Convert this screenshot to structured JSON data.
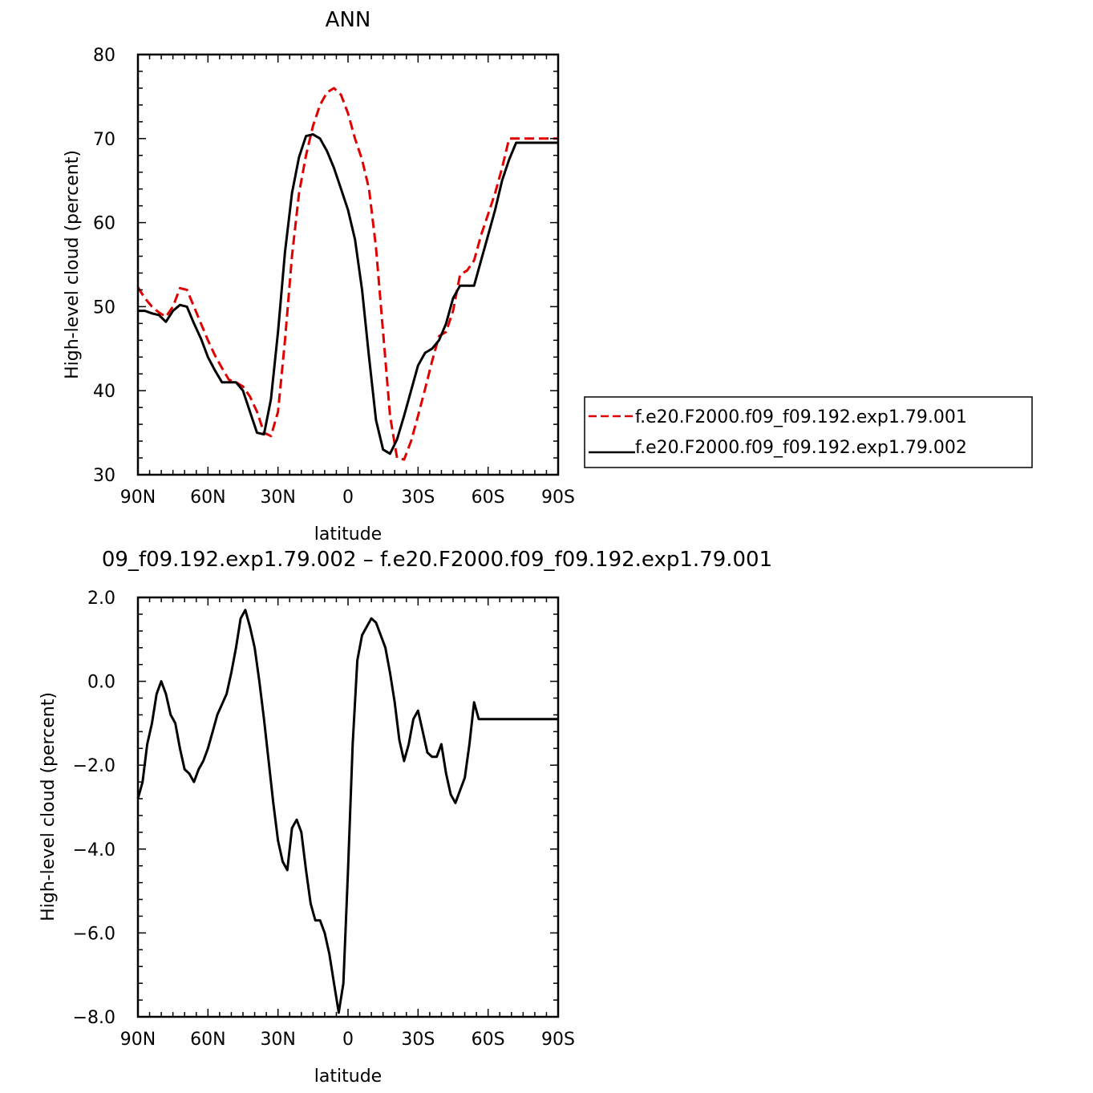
{
  "chart_data": [
    {
      "type": "line",
      "title": "ANN",
      "xlabel": "latitude",
      "ylabel": "High-level cloud (percent)",
      "xlim": [
        -90,
        90
      ],
      "ylim": [
        30,
        80
      ],
      "xticks": [
        -90,
        -60,
        -30,
        0,
        30,
        60,
        90
      ],
      "xtick_labels": [
        "90N",
        "60N",
        "30N",
        "0",
        "30S",
        "60S",
        "90S"
      ],
      "yticks": [
        30,
        40,
        50,
        60,
        70,
        80
      ],
      "ytick_labels": [
        "30",
        "40",
        "50",
        "60",
        "70",
        "80"
      ],
      "legend_placement": "right",
      "series": [
        {
          "name": "f.e20.F2000.f09_f09.192.exp1.79.001",
          "color": "#e00000",
          "dash": "dashed",
          "x": [
            -90,
            -87,
            -84,
            -81,
            -78,
            -75,
            -72,
            -69,
            -66,
            -63,
            -60,
            -57,
            -54,
            -51,
            -48,
            -45,
            -42,
            -39,
            -36,
            -33,
            -30,
            -27,
            -24,
            -21,
            -18,
            -15,
            -12,
            -9,
            -6,
            -3,
            0,
            3,
            6,
            9,
            12,
            15,
            18,
            21,
            24,
            27,
            30,
            33,
            36,
            39,
            42,
            45,
            48,
            51,
            54,
            57,
            60,
            63,
            66,
            69,
            72,
            75,
            78,
            81,
            84,
            87,
            90
          ],
          "y": [
            52.3,
            51.0,
            50.0,
            49.3,
            48.8,
            50.0,
            52.2,
            52.0,
            50.0,
            48.0,
            46.0,
            44.2,
            42.7,
            41.3,
            41.0,
            40.5,
            39.3,
            37.5,
            35.0,
            34.6,
            37.5,
            46.0,
            56.0,
            63.5,
            68.0,
            71.5,
            74.0,
            75.5,
            76.0,
            75.2,
            73.0,
            70.0,
            67.5,
            64.0,
            57.0,
            47.0,
            37.0,
            32.0,
            31.8,
            34.0,
            37.0,
            40.2,
            43.5,
            46.5,
            47.0,
            49.5,
            53.8,
            54.3,
            55.5,
            58.5,
            61.0,
            63.5,
            66.5,
            70.0,
            70.0,
            70.0,
            70.0,
            70.0,
            70.0,
            70.0,
            70.0
          ]
        },
        {
          "name": "f.e20.F2000.f09_f09.192.exp1.79.002",
          "color": "#000000",
          "dash": "solid",
          "x": [
            -90,
            -87,
            -84,
            -81,
            -78,
            -75,
            -72,
            -69,
            -66,
            -63,
            -60,
            -57,
            -54,
            -51,
            -48,
            -45,
            -42,
            -39,
            -36,
            -33,
            -30,
            -27,
            -24,
            -21,
            -18,
            -15,
            -12,
            -9,
            -6,
            -3,
            0,
            3,
            6,
            9,
            12,
            15,
            18,
            21,
            24,
            27,
            30,
            33,
            36,
            39,
            42,
            45,
            48,
            51,
            54,
            57,
            60,
            63,
            66,
            69,
            72,
            75,
            78,
            81,
            84,
            87,
            90
          ],
          "y": [
            49.5,
            49.5,
            49.2,
            49.0,
            48.2,
            49.5,
            50.2,
            50.0,
            48.0,
            46.2,
            44.0,
            42.4,
            41.0,
            41.0,
            41.0,
            40.0,
            37.5,
            35.0,
            34.8,
            39.0,
            47.0,
            56.5,
            63.5,
            67.8,
            70.3,
            70.5,
            70.0,
            68.5,
            66.5,
            64.0,
            61.5,
            58.0,
            52.0,
            44.0,
            36.5,
            33.0,
            32.5,
            34.2,
            37.0,
            40.0,
            43.0,
            44.5,
            45.0,
            46.0,
            48.0,
            51.0,
            52.5,
            52.5,
            52.5,
            55.5,
            58.5,
            61.5,
            65.0,
            67.5,
            69.5,
            69.5,
            69.5,
            69.5,
            69.5,
            69.5,
            69.5
          ]
        }
      ]
    },
    {
      "type": "line",
      "title": "09_f09.192.exp1.79.002 – f.e20.F2000.f09_f09.192.exp1.79.001",
      "xlabel": "latitude",
      "ylabel": "High-level cloud (percent)",
      "xlim": [
        -90,
        90
      ],
      "ylim": [
        -8,
        2
      ],
      "xticks": [
        -90,
        -60,
        -30,
        0,
        30,
        60,
        90
      ],
      "xtick_labels": [
        "90N",
        "60N",
        "30N",
        "0",
        "30S",
        "60S",
        "90S"
      ],
      "yticks": [
        -8,
        -6,
        -4,
        -2,
        0,
        2
      ],
      "ytick_labels": [
        "−8.0",
        "−6.0",
        "−4.0",
        "−2.0",
        "0.0",
        "2.0"
      ],
      "series": [
        {
          "color": "#000000",
          "dash": "solid",
          "x": [
            -90,
            -88,
            -86,
            -84,
            -82,
            -80,
            -78,
            -76,
            -74,
            -72,
            -70,
            -68,
            -66,
            -64,
            -62,
            -60,
            -58,
            -56,
            -54,
            -52,
            -50,
            -48,
            -46,
            -44,
            -42,
            -40,
            -38,
            -36,
            -34,
            -32,
            -30,
            -28,
            -26,
            -24,
            -22,
            -20,
            -18,
            -16,
            -14,
            -12,
            -10,
            -8,
            -6,
            -4,
            -2,
            0,
            2,
            4,
            6,
            8,
            10,
            12,
            14,
            16,
            18,
            20,
            22,
            24,
            26,
            28,
            30,
            32,
            34,
            36,
            38,
            40,
            42,
            44,
            46,
            48,
            50,
            52,
            54,
            56,
            58,
            60,
            62,
            64,
            66,
            68,
            70,
            72,
            74,
            76,
            78,
            80,
            82,
            84,
            86,
            88,
            90
          ],
          "y": [
            -2.8,
            -2.4,
            -1.5,
            -1.0,
            -0.3,
            0.0,
            -0.3,
            -0.8,
            -1.0,
            -1.6,
            -2.1,
            -2.2,
            -2.4,
            -2.1,
            -1.9,
            -1.6,
            -1.2,
            -0.8,
            -0.55,
            -0.3,
            0.2,
            0.8,
            1.5,
            1.7,
            1.3,
            0.8,
            0.0,
            -0.9,
            -1.9,
            -2.9,
            -3.8,
            -4.3,
            -4.5,
            -3.5,
            -3.3,
            -3.6,
            -4.5,
            -5.3,
            -5.7,
            -5.7,
            -6.0,
            -6.5,
            -7.2,
            -7.9,
            -7.2,
            -4.5,
            -1.5,
            0.5,
            1.1,
            1.3,
            1.5,
            1.4,
            1.1,
            0.8,
            0.2,
            -0.5,
            -1.4,
            -1.9,
            -1.5,
            -0.9,
            -0.7,
            -1.2,
            -1.7,
            -1.8,
            -1.8,
            -1.5,
            -2.2,
            -2.7,
            -2.9,
            -2.6,
            -2.3,
            -1.5,
            -0.5,
            -0.9,
            -0.9,
            -0.9,
            -0.9,
            -0.9,
            -0.9,
            -0.9,
            -0.9,
            -0.9,
            -0.9,
            -0.9,
            -0.9,
            -0.9,
            -0.9,
            -0.9,
            -0.9,
            -0.9,
            -0.9
          ]
        }
      ]
    }
  ]
}
